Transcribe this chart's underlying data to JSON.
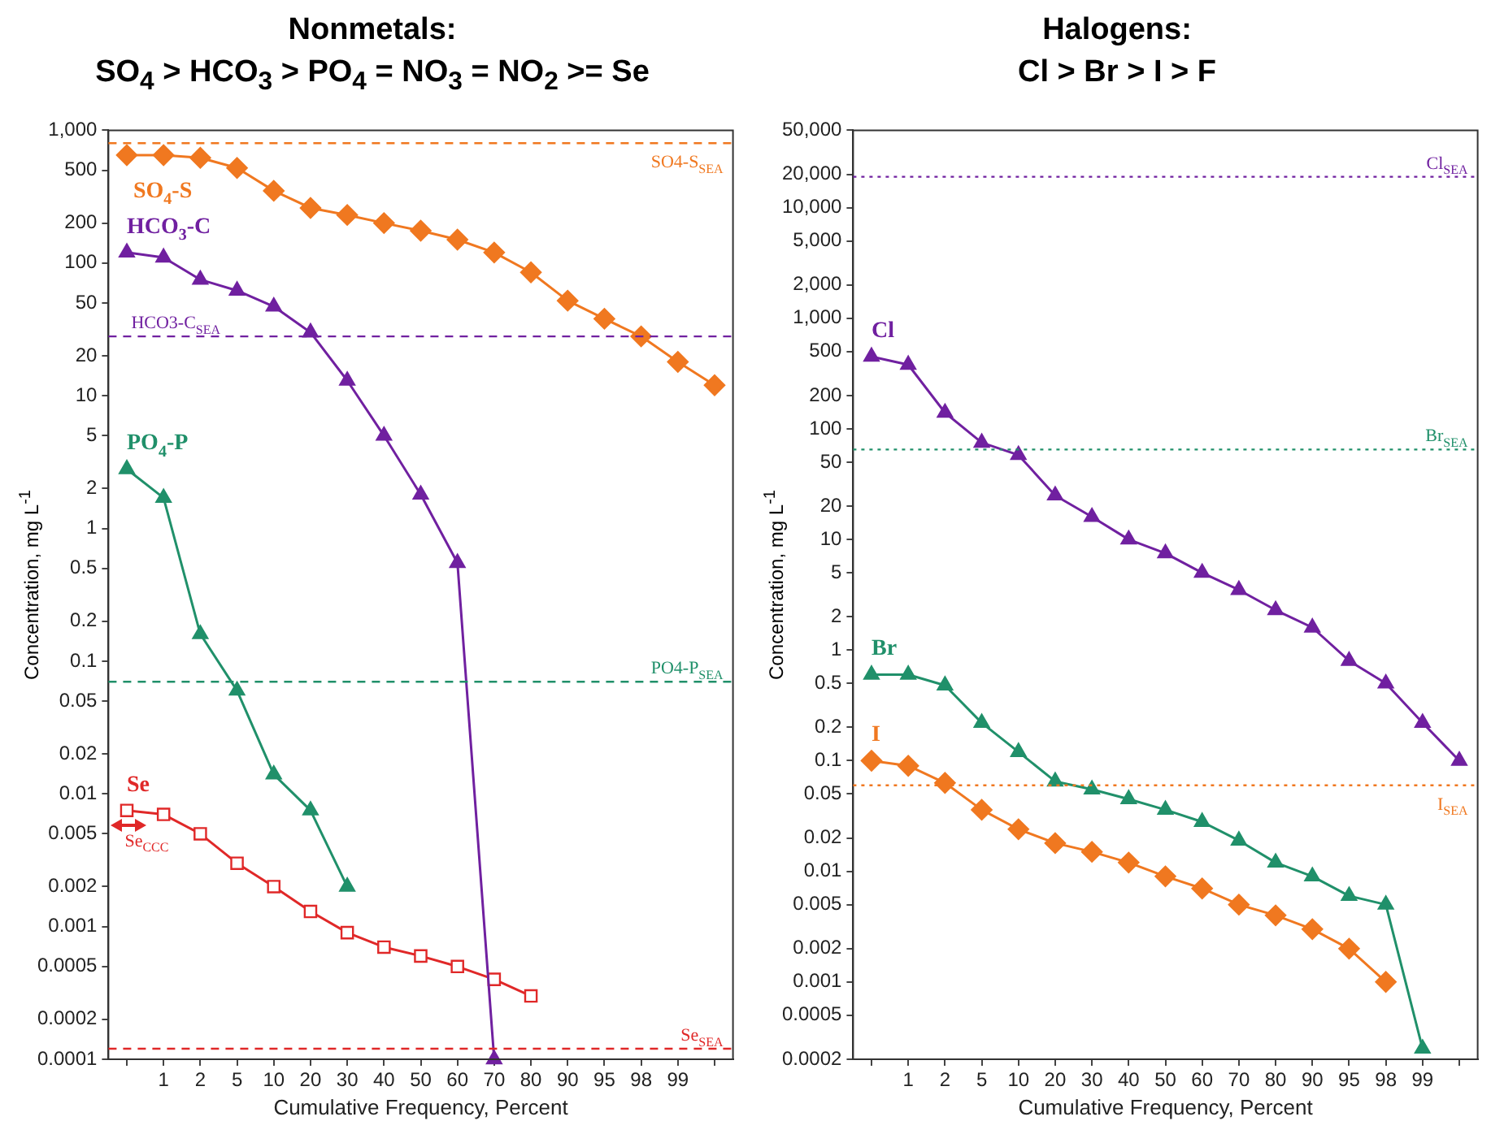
{
  "chart_data": [
    {
      "type": "line",
      "title": "Nonmetals:\nSO$_{4}$ > HCO$_{3}$ > PO$_{4}$ = NO$_{3}$ = NO$_{2}$ >= Se",
      "xlabel": "Cumulative Frequency, Percent",
      "ylabel": "Concentration, mg L$^{-1}$",
      "log": "y",
      "grid": false,
      "legend": false,
      "line_style": "solid",
      "categories": [
        null,
        "1",
        "2",
        "5",
        "10",
        "20",
        "30",
        "40",
        "50",
        "60",
        "70",
        "80",
        "90",
        "95",
        "98",
        "99",
        null
      ],
      "ylim": [
        0.0001,
        1000
      ],
      "yticks": [
        0.0001,
        0.0002,
        0.0005,
        0.001,
        0.002,
        0.005,
        0.01,
        0.02,
        0.05,
        0.1,
        0.2,
        0.5,
        1,
        2,
        5,
        10,
        20,
        50,
        100,
        200,
        500,
        {
          "value": 1000,
          "label": "1,000"
        }
      ],
      "series": [
        {
          "name": "SO$_{4}$-S",
          "color": "#f07820",
          "marker": "diamond",
          "values": [
            650,
            650,
            620,
            520,
            350,
            260,
            230,
            200,
            175,
            150,
            120,
            85,
            52,
            38,
            28,
            18,
            12
          ]
        },
        {
          "name": "HCO$_{3}$-C",
          "color": "#7020a0",
          "marker": "triangle",
          "values": [
            120,
            110,
            75,
            62,
            47,
            30,
            13,
            5,
            1.8,
            0.55,
            0.0001,
            null,
            null,
            null,
            null,
            null,
            null
          ]
        },
        {
          "name": "PO$_{4}$-P",
          "color": "#20906a",
          "marker": "triangle",
          "values": [
            2.8,
            1.7,
            0.16,
            0.06,
            0.014,
            0.0075,
            0.002,
            null,
            null,
            null,
            null,
            null,
            null,
            null,
            null,
            null,
            null
          ]
        },
        {
          "name": "Se",
          "color": "#e02828",
          "marker": "square",
          "values": [
            0.0075,
            0.007,
            0.005,
            0.003,
            0.002,
            0.0013,
            0.0009,
            0.0007,
            0.0006,
            0.0005,
            0.0004,
            0.0003,
            null,
            null,
            null,
            null,
            null
          ]
        }
      ],
      "ref_lines": [
        {
          "axis": "y",
          "value": 800,
          "label": "SO4-S$_{SEA}$",
          "color": "#f07820",
          "line_style": "dashed"
        },
        {
          "axis": "y",
          "value": 28,
          "label": "HCO3-C$_{SEA}$",
          "color": "#7020a0",
          "line_style": "dashed"
        },
        {
          "axis": "y",
          "value": 0.07,
          "label": "PO4-P$_{SEA}$",
          "color": "#20906a",
          "line_style": "dashed"
        },
        {
          "axis": "y",
          "value": 0.00012,
          "label": "Se$_{SEA}$",
          "color": "#e02828",
          "line_style": "dashed"
        }
      ],
      "annotations": [
        "Se$_{CCC}$"
      ]
    },
    {
      "type": "line",
      "title": "Halogens:\nCl > Br > I > F",
      "xlabel": "Cumulative Frequency, Percent",
      "ylabel": "Concentration, mg L$^{-1}$",
      "log": "y",
      "grid": false,
      "legend": false,
      "line_style": "solid",
      "categories": [
        null,
        "1",
        "2",
        "5",
        "10",
        "20",
        "30",
        "40",
        "50",
        "60",
        "70",
        "80",
        "90",
        "95",
        "98",
        "99",
        null
      ],
      "ylim": [
        0.0002,
        50000
      ],
      "yticks": [
        0.0002,
        0.0005,
        0.001,
        0.002,
        0.005,
        0.01,
        0.02,
        0.05,
        0.1,
        0.2,
        0.5,
        1,
        2,
        5,
        10,
        20,
        50,
        100,
        200,
        500,
        {
          "value": 1000,
          "label": "1,000"
        },
        {
          "value": 2000,
          "label": "2,000"
        },
        {
          "value": 5000,
          "label": "5,000"
        },
        {
          "value": 10000,
          "label": "10,000"
        },
        {
          "value": 20000,
          "label": "20,000"
        },
        {
          "value": 50000,
          "label": "50,000"
        }
      ],
      "series": [
        {
          "name": "Cl",
          "color": "#7020a0",
          "marker": "triangle",
          "values": [
            450,
            380,
            140,
            75,
            58,
            25,
            16,
            10,
            7.5,
            5,
            3.5,
            2.3,
            1.6,
            0.8,
            0.5,
            0.22,
            0.1
          ]
        },
        {
          "name": "Br",
          "color": "#20906a",
          "marker": "triangle",
          "values": [
            0.6,
            0.6,
            0.48,
            0.22,
            0.12,
            0.065,
            0.055,
            0.045,
            0.036,
            0.028,
            0.019,
            0.012,
            0.009,
            0.006,
            0.005,
            0.00025,
            null
          ]
        },
        {
          "name": "I",
          "color": "#f07820",
          "marker": "diamond",
          "values": [
            0.1,
            0.09,
            0.063,
            0.036,
            0.024,
            0.018,
            0.015,
            0.012,
            0.009,
            0.007,
            0.005,
            0.004,
            0.003,
            0.002,
            0.001,
            null,
            null
          ]
        }
      ],
      "ref_lines": [
        {
          "axis": "y",
          "value": 19000,
          "label": "Cl$_{SEA}$",
          "color": "#7020a0",
          "line_style": "dotted"
        },
        {
          "axis": "y",
          "value": 65,
          "label": "Br$_{SEA}$",
          "color": "#20906a",
          "line_style": "dotted"
        },
        {
          "axis": "y",
          "value": 0.06,
          "label": "I$_{SEA}$",
          "color": "#f07820",
          "line_style": "dotted"
        }
      ]
    }
  ]
}
